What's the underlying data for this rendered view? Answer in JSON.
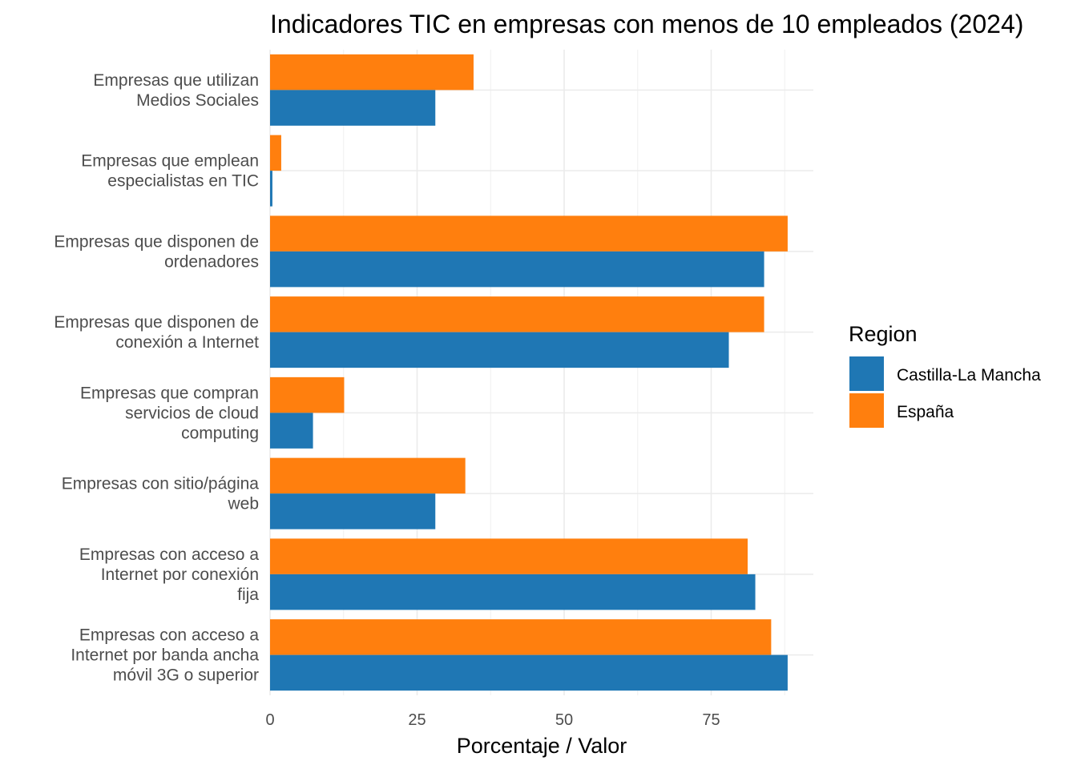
{
  "chart_data": {
    "type": "bar",
    "orientation": "horizontal",
    "title": "Indicadores TIC en empresas con menos de 10 empleados (2024)",
    "xlabel": "Porcentaje / Valor",
    "ylabel": "",
    "xlim": [
      0,
      92
    ],
    "x_ticks": [
      0,
      25,
      50,
      75
    ],
    "grid": true,
    "legend": {
      "title": "Region",
      "position": "right"
    },
    "categories": [
      [
        "Empresas que utilizan",
        "Medios Sociales"
      ],
      [
        "Empresas que emplean",
        "especialistas en TIC"
      ],
      [
        "Empresas que disponen de",
        "ordenadores"
      ],
      [
        "Empresas que disponen de",
        "conexión a Internet"
      ],
      [
        "Empresas que compran",
        "servicios de cloud",
        "computing"
      ],
      [
        "Empresas con sitio/página",
        "web"
      ],
      [
        "Empresas con acceso a",
        "Internet por conexión",
        "fija"
      ],
      [
        "Empresas con acceso a",
        "Internet por banda ancha",
        "móvil 3G o superior"
      ]
    ],
    "series": [
      {
        "name": "Castilla-La Mancha",
        "color": "#1f77b4",
        "values": [
          28.1,
          0.4,
          84.0,
          78.0,
          7.3,
          28.1,
          82.5,
          88.0
        ]
      },
      {
        "name": "España",
        "color": "#ff7f0e",
        "values": [
          34.6,
          1.9,
          88.0,
          84.0,
          12.6,
          33.2,
          81.2,
          85.2
        ]
      }
    ]
  }
}
